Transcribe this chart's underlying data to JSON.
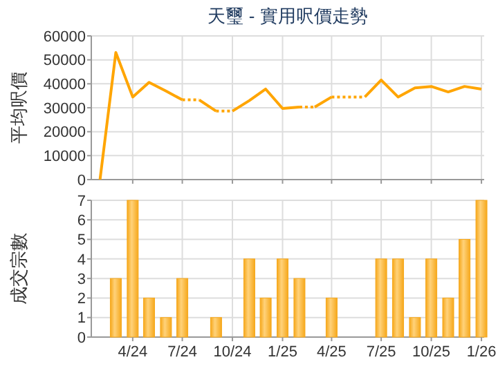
{
  "chart_data": [
    {
      "type": "line",
      "title": "天璽 - 實用呎價走勢",
      "ylabel": "平均呎價",
      "series": [
        {
          "color": "#ffa500",
          "line_style": "solid",
          "x": [
            "2024-02",
            "2024-03",
            "2024-04",
            "2024-05",
            "2024-06",
            "2024-07"
          ],
          "values": [
            0,
            53100,
            34500,
            40600,
            37000,
            33300
          ]
        },
        {
          "color": "#ffa500",
          "line_style": "dotted",
          "x": [
            "2024-07",
            "2024-08"
          ],
          "values": [
            33300,
            33300
          ]
        },
        {
          "color": "#ffa500",
          "line_style": "solid",
          "x": [
            "2024-08",
            "2024-09"
          ],
          "values": [
            33300,
            28600
          ]
        },
        {
          "color": "#ffa500",
          "line_style": "dotted",
          "x": [
            "2024-09",
            "2024-10"
          ],
          "values": [
            28600,
            28600
          ]
        },
        {
          "color": "#ffa500",
          "line_style": "solid",
          "x": [
            "2024-10",
            "2024-11",
            "2024-12",
            "2025-01",
            "2025-02"
          ],
          "values": [
            28600,
            33000,
            37800,
            29700,
            30300
          ]
        },
        {
          "color": "#ffa500",
          "line_style": "dotted",
          "x": [
            "2025-02",
            "2025-03"
          ],
          "values": [
            30300,
            30300
          ]
        },
        {
          "color": "#ffa500",
          "line_style": "solid",
          "x": [
            "2025-03",
            "2025-04"
          ],
          "values": [
            30300,
            34500
          ]
        },
        {
          "color": "#ffa500",
          "line_style": "dotted",
          "x": [
            "2025-04",
            "2025-05",
            "2025-06"
          ],
          "values": [
            34500,
            34500,
            34500
          ]
        },
        {
          "color": "#ffa500",
          "line_style": "solid",
          "x": [
            "2025-06",
            "2025-07",
            "2025-08",
            "2025-09",
            "2025-10",
            "2025-11",
            "2025-12",
            "2026-01"
          ],
          "values": [
            34500,
            41600,
            34500,
            38300,
            38900,
            36600,
            38900,
            37800
          ]
        }
      ],
      "xlim": [
        "2024-01-16",
        "2026-01-06"
      ],
      "xticks": [
        {
          "value": "2024-04",
          "label": null
        },
        {
          "value": "2024-07",
          "label": null
        },
        {
          "value": "2024-10",
          "label": null
        },
        {
          "value": "2025-01",
          "label": null
        },
        {
          "value": "2025-04",
          "label": null
        },
        {
          "value": "2025-07",
          "label": null
        },
        {
          "value": "2025-10",
          "label": null
        },
        {
          "value": "2026-01",
          "label": null
        }
      ],
      "ylim": [
        0,
        60000
      ],
      "yticks": [
        0,
        10000,
        20000,
        30000,
        40000,
        50000,
        60000
      ],
      "grid": true,
      "tick_labels": "y",
      "marker": "none"
    },
    {
      "type": "bar",
      "ylabel": "成交宗數",
      "x": [
        "2024-02",
        "2024-03",
        "2024-04",
        "2024-05",
        "2024-06",
        "2024-07",
        "2024-08",
        "2024-09",
        "2024-10",
        "2024-11",
        "2024-12",
        "2025-01",
        "2025-02",
        "2025-03",
        "2025-04",
        "2025-05",
        "2025-06",
        "2025-07",
        "2025-08",
        "2025-09",
        "2025-10",
        "2025-11",
        "2025-12",
        "2026-01"
      ],
      "values": [
        0,
        3,
        7,
        2,
        1,
        3,
        0,
        1,
        0,
        4,
        2,
        4,
        3,
        0,
        2,
        0,
        0,
        4,
        4,
        1,
        4,
        2,
        5,
        7
      ],
      "color": "#f6a81c",
      "xlim": [
        "2024-01-16",
        "2026-01-06"
      ],
      "xticks": [
        {
          "value": "2024-04",
          "label": "4/24"
        },
        {
          "value": "2024-07",
          "label": "7/24"
        },
        {
          "value": "2024-10",
          "label": "10/24"
        },
        {
          "value": "2025-01",
          "label": "1/25"
        },
        {
          "value": "2025-04",
          "label": "4/25"
        },
        {
          "value": "2025-07",
          "label": "7/25"
        },
        {
          "value": "2025-10",
          "label": "10/25"
        },
        {
          "value": "2026-01",
          "label": "1/26"
        }
      ],
      "ylim": [
        0,
        7
      ],
      "yticks": [
        0,
        1,
        2,
        3,
        4,
        5,
        6,
        7
      ],
      "grid": true
    }
  ]
}
